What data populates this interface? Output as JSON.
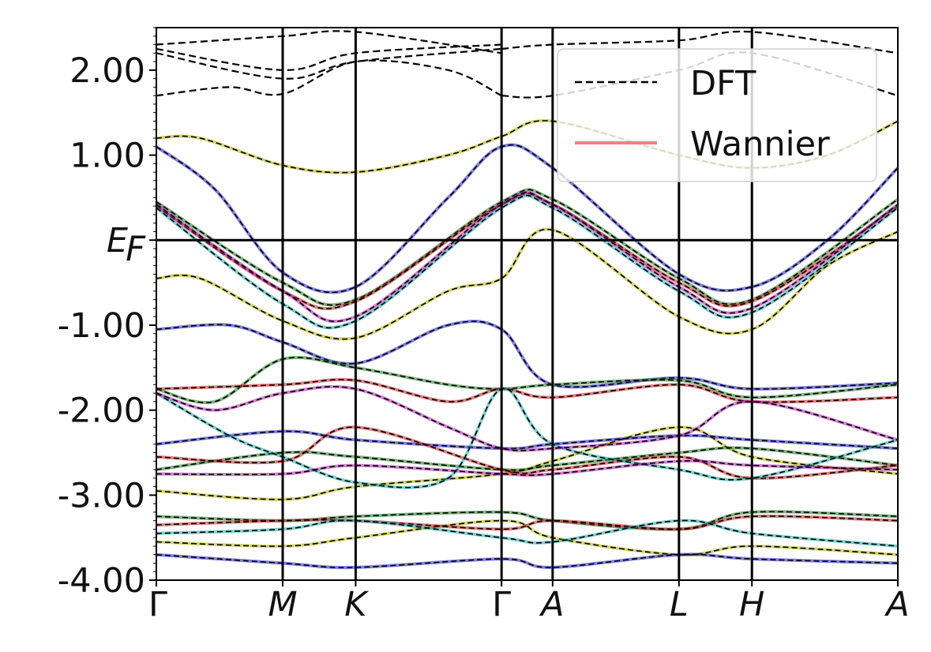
{
  "chart_data": {
    "type": "line",
    "title": "",
    "xlabel": "",
    "ylabel": "",
    "ylim": [
      -4.0,
      2.5
    ],
    "y_ticks": [
      {
        "value": 2.0,
        "label": "2.00"
      },
      {
        "value": 1.0,
        "label": "1.00"
      },
      {
        "value": 0.0,
        "label": "E",
        "sub": "F"
      },
      {
        "value": -1.0,
        "label": "-1.00"
      },
      {
        "value": -2.0,
        "label": "-2.00"
      },
      {
        "value": -3.0,
        "label": "-3.00"
      },
      {
        "value": -4.0,
        "label": "-4.00"
      }
    ],
    "kpoints": [
      {
        "label": "Γ",
        "x": 0.0,
        "italic": false
      },
      {
        "label": "M",
        "x": 0.866,
        "italic": true
      },
      {
        "label": "K",
        "x": 1.366,
        "italic": true
      },
      {
        "label": "Γ",
        "x": 2.366,
        "italic": false
      },
      {
        "label": "A",
        "x": 2.716,
        "italic": true
      },
      {
        "label": "L",
        "x": 3.582,
        "italic": true
      },
      {
        "label": "H",
        "x": 4.082,
        "italic": true
      },
      {
        "label": "A",
        "x": 5.082,
        "italic": true
      }
    ],
    "fermi_level": 0.0,
    "legend": {
      "placement": "top-right",
      "entries": [
        {
          "label": "DFT",
          "style": "dashed",
          "color": "#000000"
        },
        {
          "label": "Wannier",
          "style": "solid",
          "color": "#f08080"
        }
      ]
    },
    "series": [
      {
        "name": "DFT",
        "color": "#000000",
        "style": "dashed",
        "bands": [
          {
            "x": [
              0,
              0.866,
              1.366,
              2.366
            ],
            "y": [
              2.2,
              1.9,
              2.1,
              2.25
            ]
          },
          {
            "x": [
              0,
              0.866,
              1.366,
              2.366
            ],
            "y": [
              2.25,
              2.0,
              2.2,
              2.3
            ]
          },
          {
            "x": [
              0,
              0.5,
              0.866,
              1.366,
              2.0,
              2.366
            ],
            "y": [
              1.7,
              1.8,
              1.72,
              2.1,
              2.0,
              1.7
            ]
          },
          {
            "x": [
              0,
              0.866,
              1.366,
              2.366
            ],
            "y": [
              2.3,
              2.4,
              2.45,
              2.2
            ]
          },
          {
            "x": [
              2.366,
              2.716,
              3.582,
              4.082,
              5.082
            ],
            "y": [
              1.7,
              1.7,
              2.0,
              2.2,
              1.7
            ]
          },
          {
            "x": [
              2.366,
              2.716,
              3.582,
              4.082,
              5.082
            ],
            "y": [
              2.25,
              2.3,
              2.35,
              2.45,
              2.2
            ]
          }
        ]
      },
      {
        "name": "",
        "color": "#b5b500",
        "bands": [
          {
            "x": [
              0,
              0.3,
              0.866,
              1.366,
              2.0,
              2.366,
              2.716,
              3.582,
              4.082,
              4.6,
              5.082
            ],
            "y": [
              1.2,
              1.2,
              0.88,
              0.8,
              1.0,
              1.22,
              1.4,
              1.0,
              0.85,
              1.0,
              1.4
            ]
          },
          {
            "x": [
              0,
              0.3,
              0.866,
              1.366,
              2.0,
              2.366,
              2.716,
              3.582,
              4.082,
              4.6,
              5.082
            ],
            "y": [
              -0.45,
              -0.45,
              -0.95,
              -1.15,
              -0.6,
              -0.45,
              0.12,
              -0.9,
              -1.05,
              -0.3,
              0.1
            ]
          },
          {
            "x": [
              0,
              0.866,
              1.366,
              2.366,
              2.716,
              3.582,
              4.082,
              5.082
            ],
            "y": [
              -2.95,
              -3.05,
              -2.9,
              -2.75,
              -2.6,
              -2.2,
              -2.55,
              -2.75
            ]
          },
          {
            "x": [
              0,
              0.866,
              1.366,
              2.366,
              2.716,
              3.582,
              4.082,
              5.082
            ],
            "y": [
              -3.55,
              -3.6,
              -3.5,
              -3.3,
              -3.5,
              -3.7,
              -3.6,
              -3.7
            ]
          }
        ]
      },
      {
        "name": "",
        "color": "#1a1acc",
        "bands": [
          {
            "x": [
              0,
              0.4,
              0.866,
              1.366,
              2.0,
              2.366,
              2.716,
              3.582,
              4.082,
              4.6,
              5.082
            ],
            "y": [
              1.1,
              0.6,
              -0.38,
              -0.55,
              0.5,
              1.1,
              0.85,
              -0.4,
              -0.55,
              0.0,
              0.85
            ]
          },
          {
            "x": [
              0,
              0.5,
              0.866,
              1.366,
              2.0,
              2.366,
              2.716,
              3.582,
              4.082,
              5.082
            ],
            "y": [
              -1.05,
              -1.0,
              -1.2,
              -1.45,
              -1.0,
              -1.05,
              -1.7,
              -1.62,
              -1.75,
              -1.68
            ]
          },
          {
            "x": [
              0,
              0.866,
              1.366,
              2.366,
              2.716,
              3.582,
              4.082,
              5.082
            ],
            "y": [
              -3.7,
              -3.8,
              -3.85,
              -3.75,
              -3.85,
              -3.7,
              -3.75,
              -3.8
            ]
          },
          {
            "x": [
              0,
              0.866,
              1.366,
              2.366,
              2.716,
              3.582,
              4.082,
              5.082
            ],
            "y": [
              -2.4,
              -2.25,
              -2.35,
              -2.45,
              -2.4,
              -2.3,
              -2.35,
              -2.45
            ]
          }
        ]
      },
      {
        "name": "",
        "color": "#1a7a1a",
        "bands": [
          {
            "x": [
              0,
              0.866,
              1.366,
              2.366,
              2.716,
              3.582,
              4.082,
              5.082
            ],
            "y": [
              0.45,
              -0.5,
              -0.7,
              0.45,
              0.48,
              -0.45,
              -0.7,
              0.48
            ]
          },
          {
            "x": [
              0,
              0.4,
              0.866,
              1.366,
              2.0,
              2.366,
              2.716,
              3.582,
              4.082,
              5.082
            ],
            "y": [
              -1.75,
              -1.9,
              -1.4,
              -1.5,
              -1.7,
              -1.75,
              -1.7,
              -1.65,
              -1.85,
              -1.7
            ]
          },
          {
            "x": [
              0,
              0.866,
              1.366,
              2.366,
              2.716,
              3.582,
              4.082,
              5.082
            ],
            "y": [
              -2.7,
              -2.5,
              -2.55,
              -2.7,
              -2.65,
              -2.5,
              -2.45,
              -2.65
            ]
          },
          {
            "x": [
              0,
              0.866,
              1.366,
              2.366,
              2.716,
              3.582,
              4.082,
              5.082
            ],
            "y": [
              -3.25,
              -3.3,
              -3.25,
              -3.2,
              -3.3,
              -3.4,
              -3.2,
              -3.25
            ]
          }
        ]
      },
      {
        "name": "",
        "color": "#cc1a1a",
        "bands": [
          {
            "x": [
              0,
              0.866,
              1.366,
              2.366,
              2.716,
              3.582,
              4.082,
              5.082
            ],
            "y": [
              0.4,
              -0.6,
              -0.72,
              0.42,
              0.42,
              -0.5,
              -0.72,
              0.4
            ]
          },
          {
            "x": [
              0,
              0.866,
              1.366,
              2.0,
              2.366,
              2.716,
              3.582,
              4.082,
              5.082
            ],
            "y": [
              -1.75,
              -1.7,
              -1.65,
              -1.9,
              -1.75,
              -1.85,
              -1.7,
              -1.9,
              -1.85
            ]
          },
          {
            "x": [
              0,
              0.866,
              1.366,
              2.366,
              2.716,
              3.582,
              4.082,
              5.082
            ],
            "y": [
              -3.35,
              -3.3,
              -3.3,
              -3.4,
              -3.3,
              -3.4,
              -3.25,
              -3.3
            ]
          },
          {
            "x": [
              0,
              0.866,
              1.366,
              2.366,
              2.716,
              3.582,
              4.082,
              5.082
            ],
            "y": [
              -2.55,
              -2.6,
              -2.2,
              -2.7,
              -2.7,
              -2.55,
              -2.8,
              -2.65
            ]
          }
        ]
      },
      {
        "name": "",
        "color": "#18a8a8",
        "bands": [
          {
            "x": [
              0,
              0.866,
              1.366,
              2.366,
              2.716,
              3.582,
              4.082,
              5.082
            ],
            "y": [
              0.38,
              -0.75,
              -0.95,
              0.38,
              0.38,
              -0.6,
              -0.85,
              0.38
            ]
          },
          {
            "x": [
              0,
              0.5,
              0.866,
              1.366,
              2.0,
              2.366,
              2.716,
              3.582,
              4.082,
              5.082
            ],
            "y": [
              -1.8,
              -2.3,
              -2.55,
              -2.85,
              -2.8,
              -1.75,
              -2.4,
              -2.7,
              -2.8,
              -2.35
            ]
          },
          {
            "x": [
              0,
              0.866,
              1.366,
              2.366,
              2.716,
              3.582,
              4.082,
              5.082
            ],
            "y": [
              -3.45,
              -3.4,
              -3.3,
              -3.5,
              -3.55,
              -3.3,
              -3.45,
              -3.6
            ]
          }
        ]
      },
      {
        "name": "",
        "color": "#b01ab0",
        "bands": [
          {
            "x": [
              0,
              0.866,
              1.366,
              2.366,
              2.716,
              3.582,
              4.082,
              5.082
            ],
            "y": [
              0.42,
              -0.6,
              -0.9,
              0.42,
              0.42,
              -0.55,
              -0.8,
              0.42
            ]
          },
          {
            "x": [
              0,
              0.4,
              0.866,
              1.366,
              2.0,
              2.366,
              2.716,
              3.582,
              4.082,
              5.082
            ],
            "y": [
              -1.8,
              -2.0,
              -1.8,
              -1.75,
              -2.2,
              -2.45,
              -2.45,
              -2.3,
              -1.9,
              -2.35
            ]
          },
          {
            "x": [
              0,
              0.866,
              1.366,
              2.366,
              2.716,
              3.582,
              4.082,
              5.082
            ],
            "y": [
              -2.75,
              -2.75,
              -2.65,
              -2.75,
              -2.75,
              -2.6,
              -2.65,
              -2.7
            ]
          }
        ]
      }
    ]
  }
}
